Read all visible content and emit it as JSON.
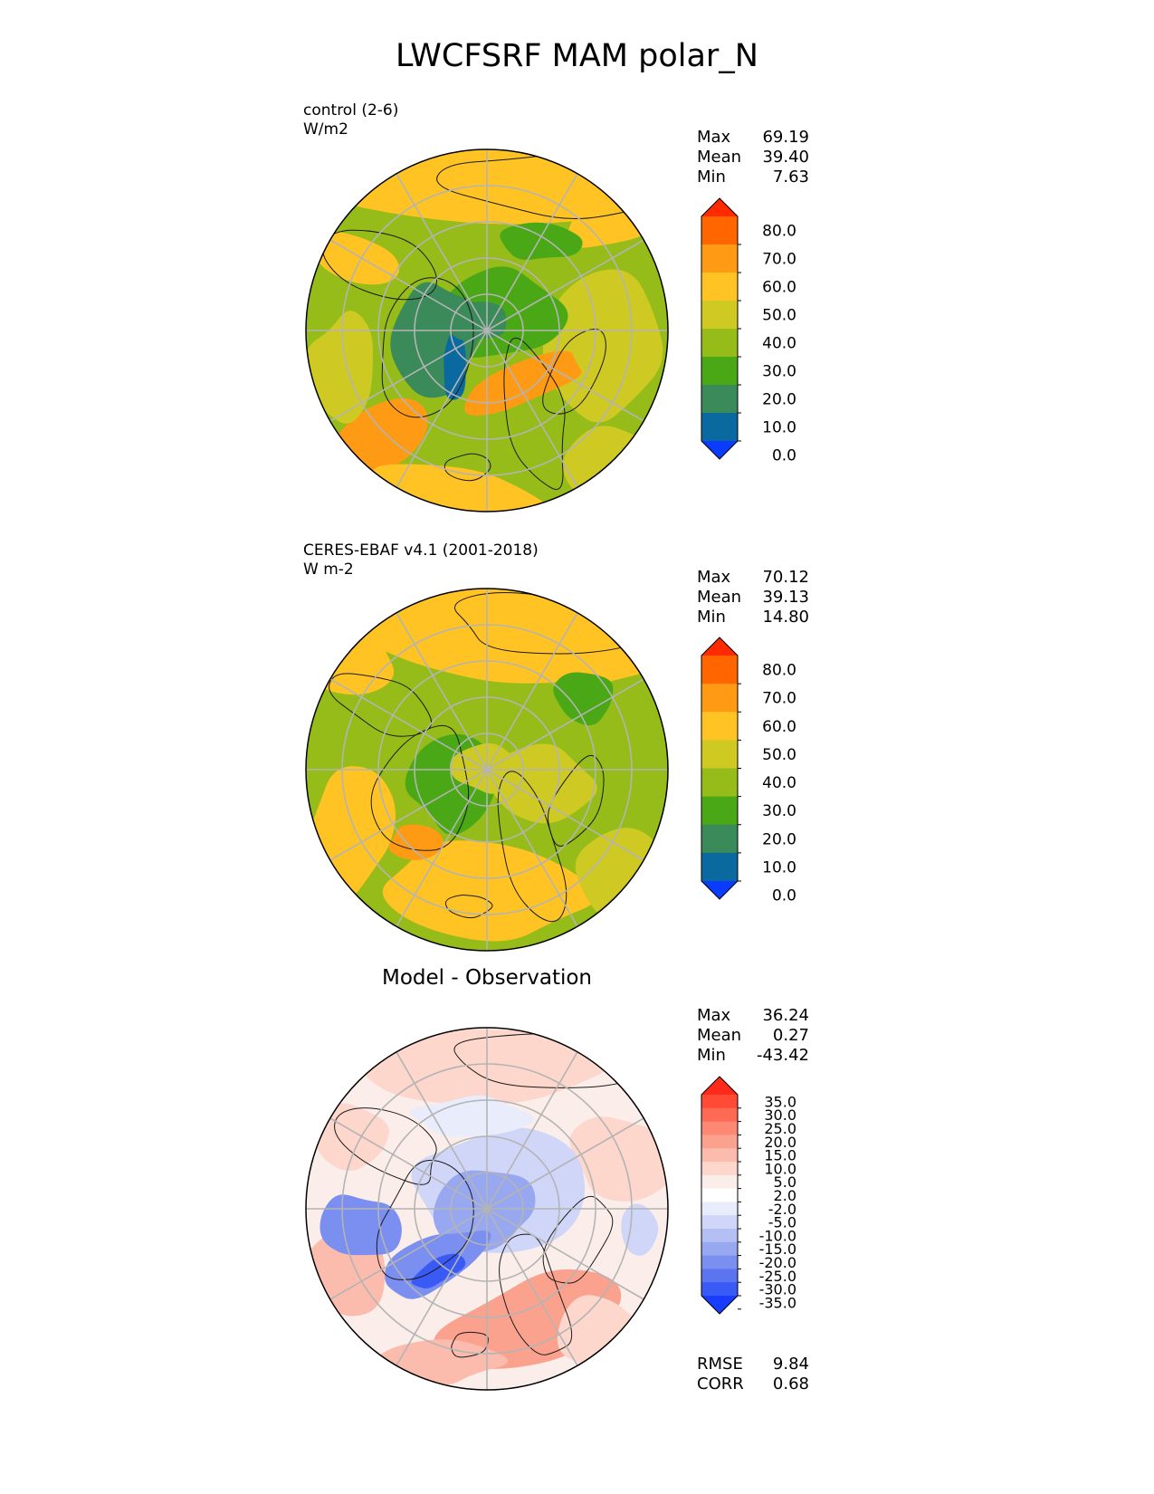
{
  "title": "LWCFSRF MAM polar_N",
  "panels": [
    {
      "label": "control (2-6)",
      "units": "W/m2",
      "subtitle": "",
      "stats": [
        {
          "name": "Max",
          "value": "69.19"
        },
        {
          "name": "Mean",
          "value": "39.40"
        },
        {
          "name": "Min",
          "value": "7.63"
        }
      ],
      "footer_stats": []
    },
    {
      "label": "CERES-EBAF v4.1 (2001-2018)",
      "units": "W m-2",
      "subtitle": "",
      "stats": [
        {
          "name": "Max",
          "value": "70.12"
        },
        {
          "name": "Mean",
          "value": "39.13"
        },
        {
          "name": "Min",
          "value": "14.80"
        }
      ],
      "footer_stats": []
    },
    {
      "label": "",
      "units": "",
      "subtitle": "Model - Observation",
      "stats": [
        {
          "name": "Max",
          "value": "36.24"
        },
        {
          "name": "Mean",
          "value": "0.27"
        },
        {
          "name": "Min",
          "value": "-43.42"
        }
      ],
      "footer_stats": [
        {
          "name": "RMSE",
          "value": "9.84"
        },
        {
          "name": "CORR",
          "value": "0.68"
        }
      ]
    }
  ],
  "chart_data": [
    {
      "type": "heatmap",
      "projection": "north polar stereographic",
      "title": "control (2-6)",
      "units": "W/m2",
      "colorbar": {
        "levels": [
          "80.0",
          "70.0",
          "60.0",
          "50.0",
          "40.0",
          "30.0",
          "20.0",
          "10.0",
          "0.0"
        ],
        "colors": [
          "#ff2a00",
          "#ff6600",
          "#ff9a14",
          "#ffc324",
          "#cfc924",
          "#96bc1a",
          "#4aa817",
          "#3a8a5a",
          "#0a6aa0",
          "#0a3cff"
        ],
        "extend": "both"
      },
      "stats": {
        "max": 69.19,
        "mean": 39.4,
        "min": 7.63
      }
    },
    {
      "type": "heatmap",
      "projection": "north polar stereographic",
      "title": "CERES-EBAF v4.1 (2001-2018)",
      "units": "W m-2",
      "colorbar": {
        "levels": [
          "80.0",
          "70.0",
          "60.0",
          "50.0",
          "40.0",
          "30.0",
          "20.0",
          "10.0",
          "0.0"
        ],
        "colors": [
          "#ff2a00",
          "#ff6600",
          "#ff9a14",
          "#ffc324",
          "#cfc924",
          "#96bc1a",
          "#4aa817",
          "#3a8a5a",
          "#0a6aa0",
          "#0a3cff"
        ],
        "extend": "both"
      },
      "stats": {
        "max": 70.12,
        "mean": 39.13,
        "min": 14.8
      }
    },
    {
      "type": "heatmap",
      "projection": "north polar stereographic",
      "title": "Model - Observation",
      "colorbar": {
        "levels": [
          "35.0",
          "30.0",
          "25.0",
          "20.0",
          "15.0",
          "10.0",
          "5.0",
          "2.0",
          "-2.0",
          "-5.0",
          "-10.0",
          "-15.0",
          "-20.0",
          "-25.0",
          "-30.0",
          "-35.0"
        ],
        "colors": [
          "#ff2a1a",
          "#ff4a36",
          "#ff6a55",
          "#fd8874",
          "#fba28f",
          "#fbbcad",
          "#fdd6cc",
          "#fbeeea",
          "#ffffff",
          "#e8ecfb",
          "#cfd6f8",
          "#b4c0f4",
          "#97a8f0",
          "#7a8ff0",
          "#5b74f0",
          "#3a5af5",
          "#1a3cff"
        ],
        "extend": "both"
      },
      "stats": {
        "max": 36.24,
        "mean": 0.27,
        "min": -43.42,
        "rmse": 9.84,
        "corr": 0.68
      }
    }
  ]
}
